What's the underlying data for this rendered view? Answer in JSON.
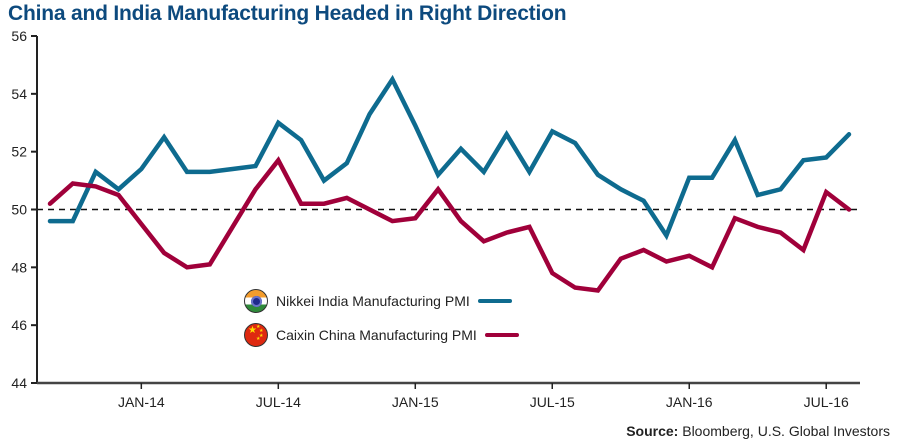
{
  "chart_data": {
    "type": "line",
    "title": "China and India Manufacturing Headed in Right Direction",
    "xlabel": "",
    "ylabel": "",
    "ylim": [
      44,
      56
    ],
    "yticks": [
      44,
      46,
      48,
      50,
      52,
      54,
      56
    ],
    "x": [
      "Sep-13",
      "Oct-13",
      "Nov-13",
      "Dec-13",
      "Jan-14",
      "Feb-14",
      "Mar-14",
      "Apr-14",
      "May-14",
      "Jun-14",
      "Jul-14",
      "Aug-14",
      "Sep-14",
      "Oct-14",
      "Nov-14",
      "Dec-14",
      "Jan-15",
      "Feb-15",
      "Mar-15",
      "Apr-15",
      "May-15",
      "Jun-15",
      "Jul-15",
      "Aug-15",
      "Sep-15",
      "Oct-15",
      "Nov-15",
      "Dec-15",
      "Jan-16",
      "Feb-16",
      "Mar-16",
      "Apr-16",
      "May-16",
      "Jun-16",
      "Jul-16",
      "Aug-16"
    ],
    "xtick_labels": [
      {
        "label": "JAN-14",
        "index": 4
      },
      {
        "label": "JUL-14",
        "index": 10
      },
      {
        "label": "JAN-15",
        "index": 16
      },
      {
        "label": "JUL-15",
        "index": 22
      },
      {
        "label": "JAN-16",
        "index": 28
      },
      {
        "label": "JUL-16",
        "index": 34
      }
    ],
    "reference_line": {
      "value": 50,
      "style": "dashed"
    },
    "series": [
      {
        "name": "Nikkei India Manufacturing PMI",
        "color": "#0e6b8f",
        "values": [
          49.6,
          49.6,
          51.3,
          50.7,
          51.4,
          52.5,
          51.3,
          51.3,
          51.4,
          51.5,
          53.0,
          52.4,
          51.0,
          51.6,
          53.3,
          54.5,
          52.9,
          51.2,
          52.1,
          51.3,
          52.6,
          51.3,
          52.7,
          52.3,
          51.2,
          50.7,
          50.3,
          49.1,
          51.1,
          51.1,
          52.4,
          50.5,
          50.7,
          51.7,
          51.8,
          52.6
        ]
      },
      {
        "name": "Caixin China Manufacturing PMI",
        "color": "#a0003a",
        "values": [
          50.2,
          50.9,
          50.8,
          50.5,
          49.5,
          48.5,
          48.0,
          48.1,
          49.4,
          50.7,
          51.7,
          50.2,
          50.2,
          50.4,
          50.0,
          49.6,
          49.7,
          50.7,
          49.6,
          48.9,
          49.2,
          49.4,
          47.8,
          47.3,
          47.2,
          48.3,
          48.6,
          48.2,
          48.4,
          48.0,
          49.7,
          49.4,
          49.2,
          48.6,
          50.6,
          50.0
        ]
      }
    ],
    "legend": "center-left",
    "grid": false
  },
  "title": "China and India Manufacturing Headed in Right Direction",
  "legend": {
    "india_label": "Nikkei India Manufacturing PMI",
    "china_label": "Caixin China Manufacturing PMI",
    "india_flag_icon": "india-flag-icon",
    "china_flag_icon": "china-flag-icon"
  },
  "source": {
    "prefix": "Source:",
    "text": " Bloomberg, U.S. Global Investors"
  }
}
